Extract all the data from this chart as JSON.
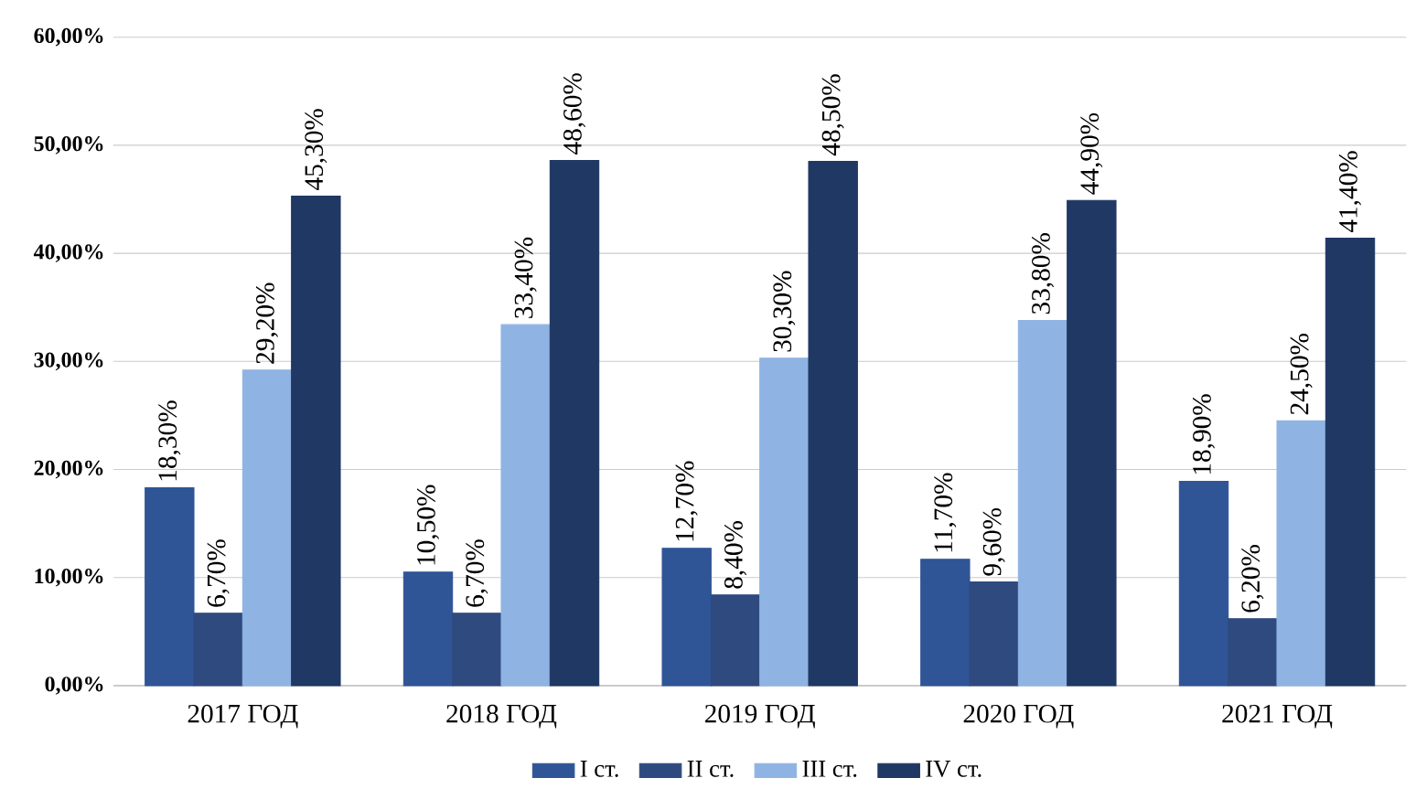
{
  "chart_data": {
    "type": "bar",
    "categories": [
      "2017 ГОД",
      "2018 ГОД",
      "2019 ГОД",
      "2020 ГОД",
      "2021 ГОД"
    ],
    "series": [
      {
        "name": "I ст.",
        "color": "#2f5597",
        "values": [
          18.3,
          10.5,
          12.7,
          11.7,
          18.9
        ],
        "value_labels": [
          "18,30%",
          "10,50%",
          "12,70%",
          "11,70%",
          "18,90%"
        ]
      },
      {
        "name": "II ст.",
        "color": "#2f4a7f",
        "values": [
          6.7,
          6.7,
          8.4,
          9.6,
          6.2
        ],
        "value_labels": [
          "6,70%",
          "6,70%",
          "8,40%",
          "9,60%",
          "6,20%"
        ]
      },
      {
        "name": "III ст.",
        "color": "#8fb4e3",
        "values": [
          29.2,
          33.4,
          30.3,
          33.8,
          24.5
        ],
        "value_labels": [
          "29,20%",
          "33,40%",
          "30,30%",
          "33,80%",
          "24,50%"
        ]
      },
      {
        "name": "IV ст.",
        "color": "#1f3864",
        "values": [
          45.3,
          48.6,
          48.5,
          44.9,
          41.4
        ],
        "value_labels": [
          "45,30%",
          "48,60%",
          "48,50%",
          "44,90%",
          "41,40%"
        ]
      }
    ],
    "ylim": [
      0,
      60
    ],
    "yticks": [
      {
        "value": 0,
        "label": "0,00%"
      },
      {
        "value": 10,
        "label": "10,00%"
      },
      {
        "value": 20,
        "label": "20,00%"
      },
      {
        "value": 30,
        "label": "30,00%"
      },
      {
        "value": 40,
        "label": "40,00%"
      },
      {
        "value": 50,
        "label": "50,00%"
      },
      {
        "value": 60,
        "label": "60,00%"
      }
    ],
    "grid": "y",
    "legend": "bottom"
  }
}
